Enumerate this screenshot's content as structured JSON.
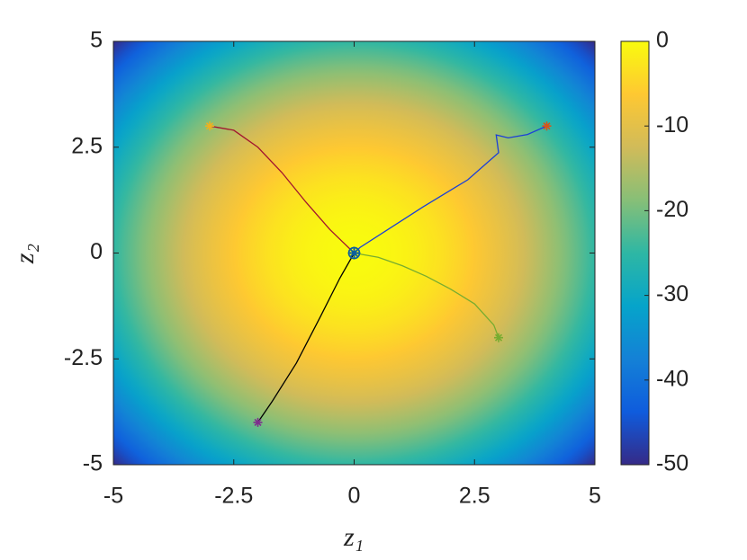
{
  "chart_data": {
    "type": "trajectory",
    "xlabel": "z₁",
    "ylabel": "z₂",
    "xlim": [
      -5,
      5
    ],
    "ylim": [
      -5,
      5
    ],
    "xticks": [
      -5,
      -2.5,
      0,
      2.5,
      5
    ],
    "yticks": [
      -5,
      -2.5,
      0,
      2.5,
      5
    ],
    "clim": [
      -50,
      0
    ],
    "cticks": [
      -50,
      -40,
      -30,
      -20,
      -10,
      0
    ],
    "colormap": [
      "#352a87",
      "#0f5cdd",
      "#1481d6",
      "#06a4ca",
      "#2eb7a4",
      "#87bf77",
      "#d1bb59",
      "#fec832",
      "#f9fb0e"
    ],
    "series": [
      {
        "color": "#a2142f",
        "marker_color": "#edb120",
        "x": [
          -3,
          -2.5,
          -2,
          -1.5,
          -1,
          -0.5,
          0
        ],
        "y": [
          3,
          2.9,
          2.5,
          1.9,
          1.2,
          0.55,
          0
        ]
      },
      {
        "color": "#1a3fd8",
        "marker_color": "#d95319",
        "x": [
          4,
          3.6,
          3.2,
          2.95,
          3.0,
          2.36,
          1.43,
          0.12,
          0
        ],
        "y": [
          3,
          2.8,
          2.72,
          2.79,
          2.37,
          1.73,
          1.09,
          0.13,
          0
        ]
      },
      {
        "color": "#77ac30",
        "marker_color": "#77ac30",
        "x": [
          3,
          2.9,
          2.5,
          2,
          1.5,
          1,
          0.5,
          0
        ],
        "y": [
          -2,
          -1.7,
          -1.2,
          -0.85,
          -0.55,
          -0.3,
          -0.1,
          0
        ]
      },
      {
        "color": "#000000",
        "marker_color": "#7e2f8e",
        "x": [
          -2,
          -1.7,
          -1.2,
          -0.7,
          -0.3,
          0
        ],
        "y": [
          -4,
          -3.5,
          -2.6,
          -1.5,
          -0.6,
          0
        ]
      }
    ]
  }
}
